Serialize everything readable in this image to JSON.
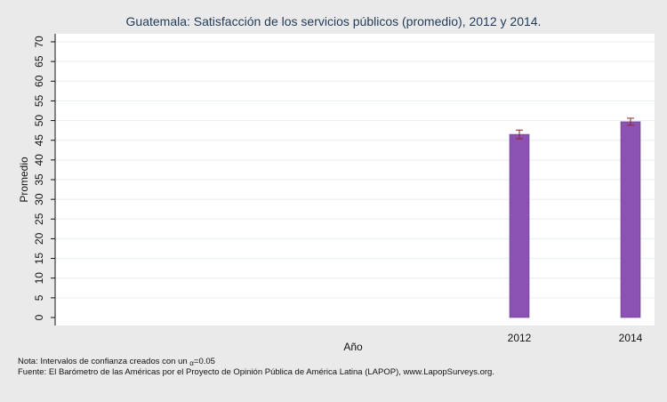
{
  "chart_data": {
    "type": "bar",
    "title": "Guatemala: Satisfacción de los servicios públicos (promedio), 2012 y 2014.",
    "xlabel": "Año",
    "ylabel": "Promedio",
    "categories": [
      "2012",
      "2014"
    ],
    "values": [
      46.5,
      49.7
    ],
    "ci": [
      [
        45.4,
        47.6
      ],
      [
        48.8,
        50.6
      ]
    ],
    "ylim": [
      0,
      70
    ],
    "yticks": [
      0,
      5,
      10,
      15,
      20,
      25,
      30,
      35,
      40,
      45,
      50,
      55,
      60,
      65,
      70
    ],
    "grid": true,
    "bar_color": "#8c52b3"
  },
  "footnotes": {
    "nota_prefix": "Nota: Intervalos de confianza creados con un ",
    "alpha_symbol": "α",
    "nota_suffix": "=0.05",
    "fuente": "Fuente: El Barómetro de las Américas por el Proyecto de Opinión Pública de América Latina (LAPOP), www.LapopSurveys.org."
  }
}
